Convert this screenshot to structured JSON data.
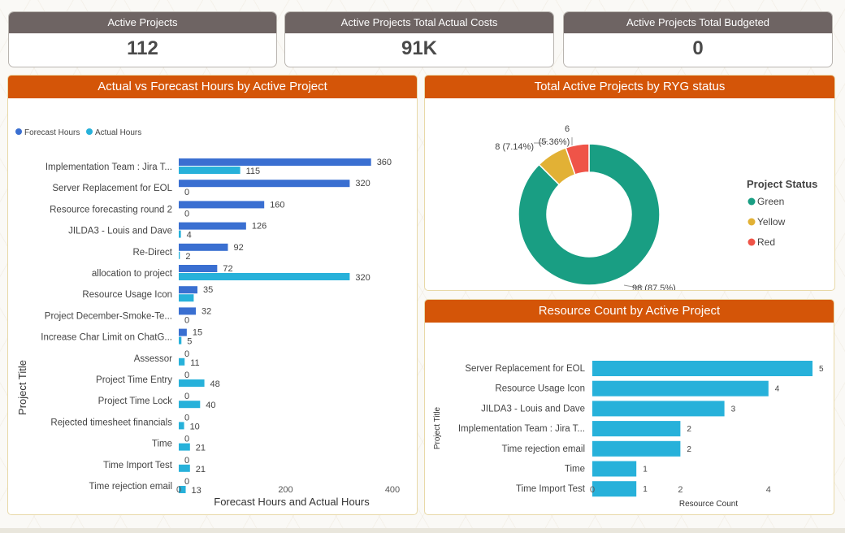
{
  "kpis": [
    {
      "label": "Active Projects",
      "value": "112"
    },
    {
      "label": "Active Projects Total Actual Costs",
      "value": "91K"
    },
    {
      "label": "Active Projects Total Budgeted",
      "value": "0"
    }
  ],
  "colors": {
    "forecast": "#3a6fd1",
    "actual": "#27b1da",
    "green": "#199e83",
    "yellow": "#e2b135",
    "red": "#ef5448",
    "header": "#d45508"
  },
  "chart_data": [
    {
      "type": "bar",
      "orientation": "horizontal",
      "title": "Actual vs Forecast Hours by Active Project",
      "xlabel": "Forecast Hours and Actual Hours",
      "ylabel": "Project Title",
      "xlim": [
        0,
        400
      ],
      "xticks": [
        "0",
        "200",
        "400"
      ],
      "legend": [
        "Forecast Hours",
        "Actual Hours"
      ],
      "categories": [
        "Implementation Team : Jira T...",
        "Server Replacement for EOL",
        "Resource forecasting round 2",
        "JILDA3 - Louis and Dave",
        "Re-Direct",
        "allocation to project",
        "Resource Usage Icon",
        "Project December-Smoke-Te...",
        "Increase Char Limit on ChatG...",
        "Assessor",
        "Project Time Entry",
        "Project Time Lock",
        "Rejected timesheet financials",
        "Time",
        "Time Import Test",
        "Time rejection email"
      ],
      "series": [
        {
          "name": "Forecast Hours",
          "values": [
            360,
            320,
            160,
            126,
            92,
            72,
            35,
            32,
            15,
            0,
            0,
            0,
            0,
            0,
            0,
            0
          ]
        },
        {
          "name": "Actual Hours",
          "values": [
            115,
            0,
            0,
            4,
            2,
            320,
            28,
            0,
            5,
            11,
            48,
            40,
            10,
            21,
            21,
            13
          ]
        }
      ],
      "data_labels": {
        "forecast": [
          "360",
          "320",
          "160",
          "126",
          "92",
          "72",
          "35",
          "32",
          "15",
          "0",
          "0",
          "0",
          "0",
          "0",
          "0",
          "0"
        ],
        "actual": [
          "115",
          "0",
          "0",
          "4",
          "2",
          "320",
          "",
          "0",
          "5",
          "11",
          "48",
          "40",
          "10",
          "21",
          "21",
          "13"
        ]
      }
    },
    {
      "type": "pie",
      "title": "Total Active Projects by RYG status",
      "legend_title": "Project Status",
      "labels": [
        "Green",
        "Yellow",
        "Red"
      ],
      "values": [
        98,
        8,
        6
      ],
      "data_labels": [
        "98 (87.5%)",
        "8 (7.14%)",
        "6"
      ],
      "extra_labels": [
        "(5.36%)"
      ]
    },
    {
      "type": "bar",
      "orientation": "horizontal",
      "title": "Resource Count by Active Project",
      "xlabel": "Resource Count",
      "ylabel": "Project Title",
      "xlim": [
        0,
        5
      ],
      "xticks": [
        "0",
        "2",
        "4"
      ],
      "categories": [
        "Server Replacement for EOL",
        "Resource Usage Icon",
        "JILDA3 - Louis and Dave",
        "Implementation Team : Jira T...",
        "Time rejection email",
        "Time",
        "Time Import Test"
      ],
      "values": [
        5,
        4,
        3,
        2,
        2,
        1,
        1
      ]
    }
  ]
}
